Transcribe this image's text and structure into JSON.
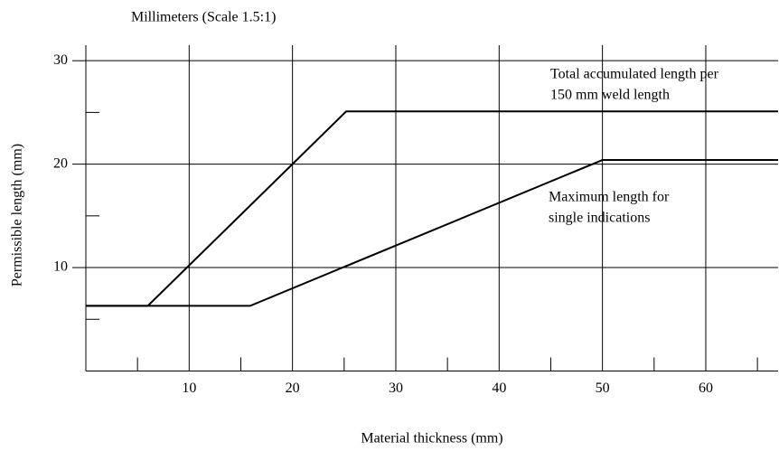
{
  "chart_data": {
    "type": "line",
    "title": "Millimeters (Scale 1.5:1)",
    "x_label": "Material thickness (mm)",
    "y_label": "Permissible length (mm)",
    "xlim": [
      0,
      67
    ],
    "ylim": [
      0,
      31.5
    ],
    "xticks": [
      10,
      20,
      30,
      40,
      50,
      60
    ],
    "yticks": [
      10,
      20,
      30
    ],
    "xminorticks": [
      5,
      15,
      25,
      35,
      45,
      55,
      65
    ],
    "yminorticks": [
      5,
      15,
      25
    ],
    "grid": true,
    "series": [
      {
        "color": "#000000",
        "x": [
          0,
          6,
          25.2,
          67
        ],
        "values": [
          6.3,
          6.3,
          25.1,
          25.1
        ]
      },
      {
        "color": "#000000",
        "x": [
          0,
          15.9,
          50,
          67
        ],
        "values": [
          6.3,
          6.3,
          20.4,
          20.4
        ]
      }
    ],
    "annotations": [
      [
        "Total accumulated length per",
        "150 mm weld length"
      ],
      [
        "Maximum length for",
        "single indications"
      ]
    ]
  }
}
